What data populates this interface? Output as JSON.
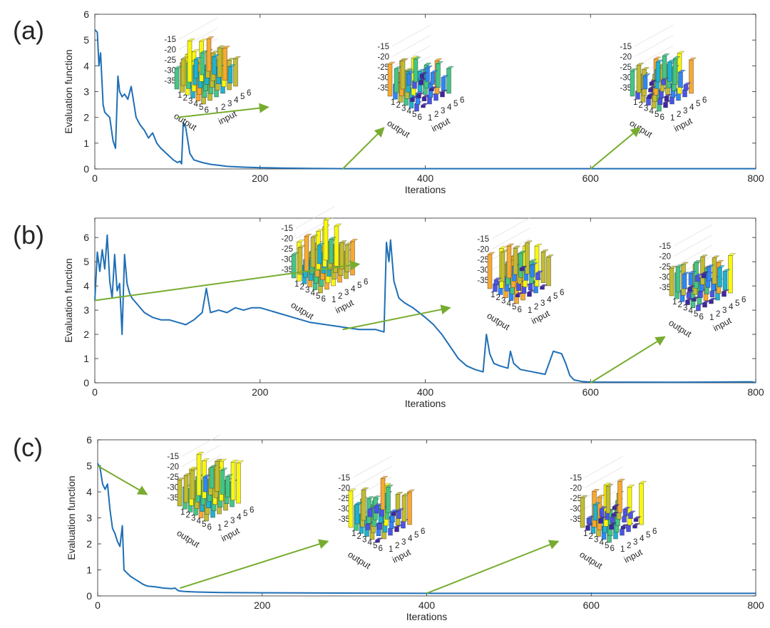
{
  "figure": {
    "panels": [
      "(a)",
      "(b)",
      "(c)"
    ]
  },
  "colors": {
    "curve": "#1f6fb5",
    "arrow": "#77ac30",
    "axis": "#262626",
    "bars": [
      "#3e26a8",
      "#4a54e8",
      "#2e87f7",
      "#1fb2cf",
      "#44c586",
      "#c2bc32",
      "#f8a930",
      "#f9f70f"
    ]
  },
  "inset_labels": {
    "z_ticks": [
      "-15",
      "-20",
      "-25",
      "-30",
      "-35"
    ],
    "output_ticks": [
      "1",
      "2",
      "3",
      "4",
      "5",
      "6"
    ],
    "input_ticks": [
      "1",
      "2",
      "3",
      "4",
      "5",
      "6"
    ],
    "output_label": "output",
    "input_label": "input"
  },
  "chart_data": [
    {
      "type": "line",
      "panel": "(a)",
      "xlabel": "Iterations",
      "ylabel": "Evaluation function",
      "xlim": [
        0,
        800
      ],
      "ylim": [
        0,
        6
      ],
      "xticks": [
        0,
        200,
        400,
        600,
        800
      ],
      "yticks": [
        0,
        1,
        2,
        3,
        4,
        5,
        6
      ],
      "series": [
        {
          "x": [
            0,
            3,
            5,
            7,
            10,
            12,
            15,
            18,
            22,
            25,
            28,
            30,
            33,
            36,
            40,
            44,
            47,
            50,
            55,
            60,
            65,
            70,
            75,
            80,
            85,
            90,
            95,
            100,
            103,
            105,
            107,
            110,
            115,
            120,
            130,
            140,
            150,
            160,
            180,
            200,
            230,
            260,
            300,
            400,
            500,
            600,
            700,
            800
          ],
          "y": [
            5.4,
            5.3,
            4.0,
            4.5,
            2.5,
            2.2,
            2.1,
            2.0,
            1.1,
            0.8,
            3.6,
            3.0,
            2.8,
            2.9,
            2.7,
            3.2,
            2.6,
            2.0,
            1.7,
            1.5,
            1.2,
            1.4,
            1.0,
            0.8,
            0.65,
            0.5,
            0.35,
            0.25,
            0.3,
            0.2,
            1.8,
            1.6,
            0.6,
            0.35,
            0.25,
            0.18,
            0.14,
            0.1,
            0.07,
            0.05,
            0.03,
            0.02,
            0.01,
            0.01,
            0.01,
            0.01,
            0.01,
            0.01
          ]
        }
      ],
      "arrows": [
        {
          "from": [
            100,
            2.0
          ],
          "to": [
            210,
            2.4
          ]
        },
        {
          "from": [
            300,
            0.0
          ],
          "to": [
            350,
            1.6
          ]
        },
        {
          "from": [
            600,
            0.0
          ],
          "to": [
            660,
            1.6
          ]
        }
      ]
    },
    {
      "type": "line",
      "panel": "(b)",
      "xlabel": "Iterations",
      "ylabel": "Evaluation function",
      "xlim": [
        0,
        800
      ],
      "ylim": [
        0,
        6.8
      ],
      "xticks": [
        0,
        200,
        400,
        600,
        800
      ],
      "yticks": [
        0,
        1,
        2,
        3,
        4,
        5,
        6
      ],
      "series": [
        {
          "x": [
            0,
            3,
            6,
            9,
            12,
            15,
            18,
            21,
            24,
            27,
            30,
            33,
            36,
            39,
            42,
            45,
            50,
            60,
            70,
            80,
            90,
            100,
            110,
            120,
            130,
            135,
            140,
            150,
            160,
            170,
            180,
            190,
            200,
            220,
            240,
            260,
            280,
            300,
            320,
            340,
            350,
            353,
            356,
            358,
            362,
            368,
            375,
            385,
            400,
            410,
            420,
            430,
            440,
            450,
            460,
            470,
            474,
            478,
            483,
            490,
            500,
            503,
            507,
            515,
            530,
            545,
            555,
            560,
            565,
            570,
            575,
            580,
            590,
            600,
            700,
            795,
            800
          ],
          "y": [
            3.4,
            5.4,
            4.6,
            5.5,
            4.7,
            6.1,
            4.2,
            3.5,
            5.3,
            3.8,
            4.1,
            2.0,
            5.3,
            4.1,
            3.7,
            3.5,
            3.3,
            2.9,
            2.7,
            2.6,
            2.6,
            2.5,
            2.4,
            2.6,
            2.9,
            3.9,
            2.9,
            3.0,
            2.9,
            3.1,
            3.0,
            3.1,
            3.1,
            2.9,
            2.7,
            2.5,
            2.4,
            2.3,
            2.2,
            2.2,
            2.1,
            5.8,
            5.0,
            5.9,
            4.2,
            3.5,
            3.3,
            3.1,
            2.7,
            2.4,
            2.0,
            1.5,
            1.0,
            0.7,
            0.55,
            0.45,
            2.0,
            1.2,
            0.8,
            0.7,
            0.6,
            1.3,
            0.8,
            0.55,
            0.45,
            0.35,
            1.3,
            1.25,
            1.2,
            0.8,
            0.3,
            0.12,
            0.05,
            0.03,
            0.02,
            0.04,
            0.01
          ]
        }
      ],
      "arrows": [
        {
          "from": [
            0,
            3.4
          ],
          "to": [
            320,
            4.9
          ]
        },
        {
          "from": [
            300,
            2.2
          ],
          "to": [
            430,
            3.1
          ]
        },
        {
          "from": [
            600,
            0.0
          ],
          "to": [
            690,
            1.9
          ]
        }
      ]
    },
    {
      "type": "line",
      "panel": "(c)",
      "xlabel": "Iterations",
      "ylabel": "Evaluation function",
      "xlim": [
        0,
        800
      ],
      "ylim": [
        0,
        6
      ],
      "xticks": [
        0,
        200,
        400,
        600,
        800
      ],
      "yticks": [
        0,
        1,
        2,
        3,
        4,
        5,
        6
      ],
      "series": [
        {
          "x": [
            0,
            3,
            6,
            9,
            12,
            15,
            18,
            21,
            24,
            27,
            30,
            32,
            35,
            40,
            45,
            50,
            55,
            60,
            70,
            80,
            90,
            94,
            98,
            105,
            120,
            150,
            200,
            300,
            400,
            500,
            600,
            700,
            800
          ],
          "y": [
            5.1,
            4.9,
            4.3,
            4.1,
            4.3,
            3.3,
            2.6,
            2.4,
            2.1,
            1.9,
            2.7,
            1.0,
            0.9,
            0.75,
            0.65,
            0.55,
            0.45,
            0.38,
            0.35,
            0.3,
            0.28,
            0.3,
            0.2,
            0.17,
            0.15,
            0.13,
            0.12,
            0.11,
            0.1,
            0.1,
            0.1,
            0.1,
            0.1
          ]
        }
      ],
      "arrows": [
        {
          "from": [
            0,
            5.0
          ],
          "to": [
            60,
            3.9
          ]
        },
        {
          "from": [
            100,
            0.3
          ],
          "to": [
            280,
            2.1
          ]
        },
        {
          "from": [
            400,
            0.1
          ],
          "to": [
            560,
            2.1
          ]
        }
      ]
    }
  ]
}
